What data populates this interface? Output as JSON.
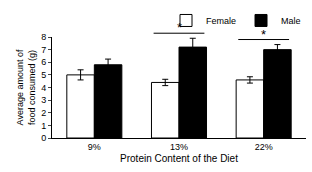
{
  "chart_data": {
    "type": "bar",
    "x_label": "Protein Content of the Diet",
    "y_label": "Average amount of food consumed (g)",
    "categories": [
      "9%",
      "13%",
      "22%"
    ],
    "series": [
      {
        "name": "Female",
        "color": "#ffffff",
        "values": [
          5.0,
          4.4,
          4.6
        ],
        "errors": [
          0.4,
          0.25,
          0.25
        ]
      },
      {
        "name": "Male",
        "color": "#000000",
        "values": [
          5.8,
          7.2,
          7.0
        ],
        "errors": [
          0.45,
          0.7,
          0.4
        ]
      }
    ],
    "ylim": [
      0,
      8
    ],
    "yticks": [
      0,
      1,
      2,
      3,
      4,
      5,
      6,
      7,
      8
    ],
    "grid": false,
    "legend": "top right",
    "annotations": [
      {
        "text": "*",
        "category": "13%"
      },
      {
        "text": "*",
        "category": "22%"
      }
    ]
  }
}
